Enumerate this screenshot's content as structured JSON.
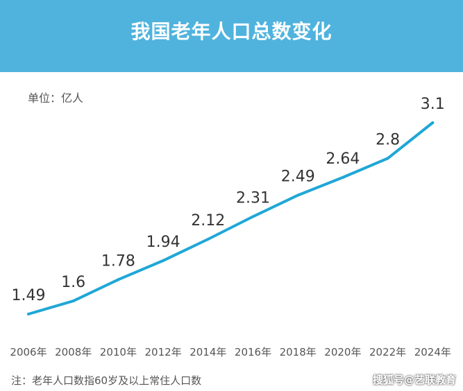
{
  "title": "我国老年人口总数变化",
  "unit": "单位：亿人",
  "note": "注：老年人口数指60岁及以上常住人口数",
  "watermark": "搜狐号@艺联教育",
  "colors": {
    "banner": "#4fb3dd",
    "line": "#1fa7d6"
  },
  "chart_data": {
    "type": "line",
    "categories": [
      "2006年",
      "2008年",
      "2010年",
      "2012年",
      "2014年",
      "2016年",
      "2018年",
      "2020年",
      "2022年",
      "2024年"
    ],
    "series": [
      {
        "values": [
          1.49,
          1.6,
          1.78,
          1.94,
          2.12,
          2.31,
          2.49,
          2.64,
          2.8,
          3.1
        ]
      }
    ],
    "ylabel": "单位：亿人",
    "grid": false,
    "legend": "none"
  }
}
